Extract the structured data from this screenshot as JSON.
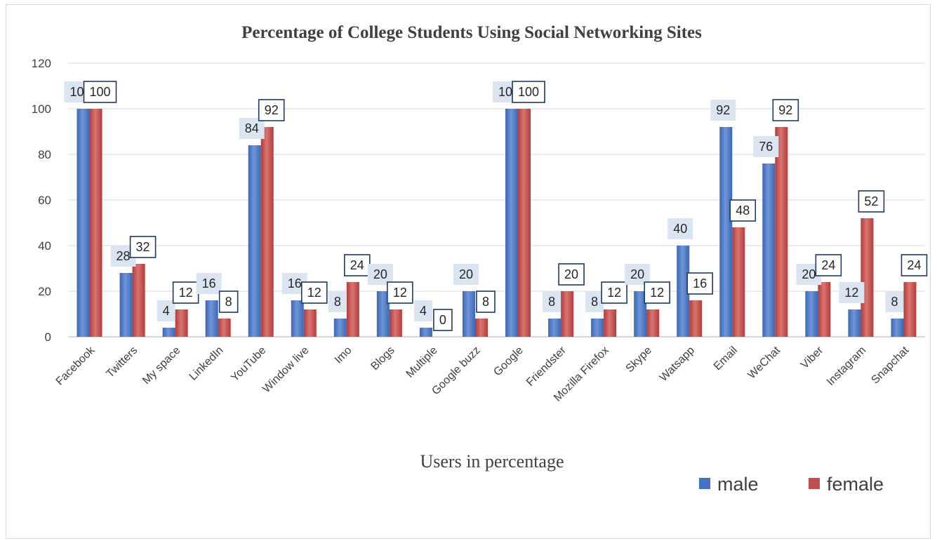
{
  "chart_data": {
    "type": "bar",
    "title": "Percentage of College Students Using Social Networking Sites",
    "xlabel": "Users in percentage",
    "ylabel": "",
    "ylim": [
      0,
      120
    ],
    "yticks": [
      0,
      20,
      40,
      60,
      80,
      100,
      120
    ],
    "grid": true,
    "legend_position": "bottom-right",
    "categories": [
      "Facebook",
      "Twitters",
      "My space",
      "LinkedIn",
      "YouTube",
      "Window live",
      "Imo",
      "Blogs",
      "Multiple",
      "Google buzz",
      "Google",
      "Friendster",
      "Mozilla Firefox",
      "Skype",
      "Watsapp",
      "Email",
      "WeChat",
      "Viber",
      "Instagram",
      "Snapchat"
    ],
    "series": [
      {
        "name": "male",
        "color": "#4472c4",
        "values": [
          100,
          28,
          4,
          16,
          84,
          16,
          8,
          20,
          4,
          20,
          100,
          8,
          8,
          20,
          40,
          92,
          76,
          20,
          12,
          8
        ]
      },
      {
        "name": "female",
        "color": "#c0504d",
        "values": [
          100,
          32,
          12,
          8,
          92,
          12,
          24,
          12,
          0,
          8,
          100,
          20,
          12,
          12,
          16,
          48,
          92,
          24,
          52,
          24
        ]
      }
    ]
  }
}
